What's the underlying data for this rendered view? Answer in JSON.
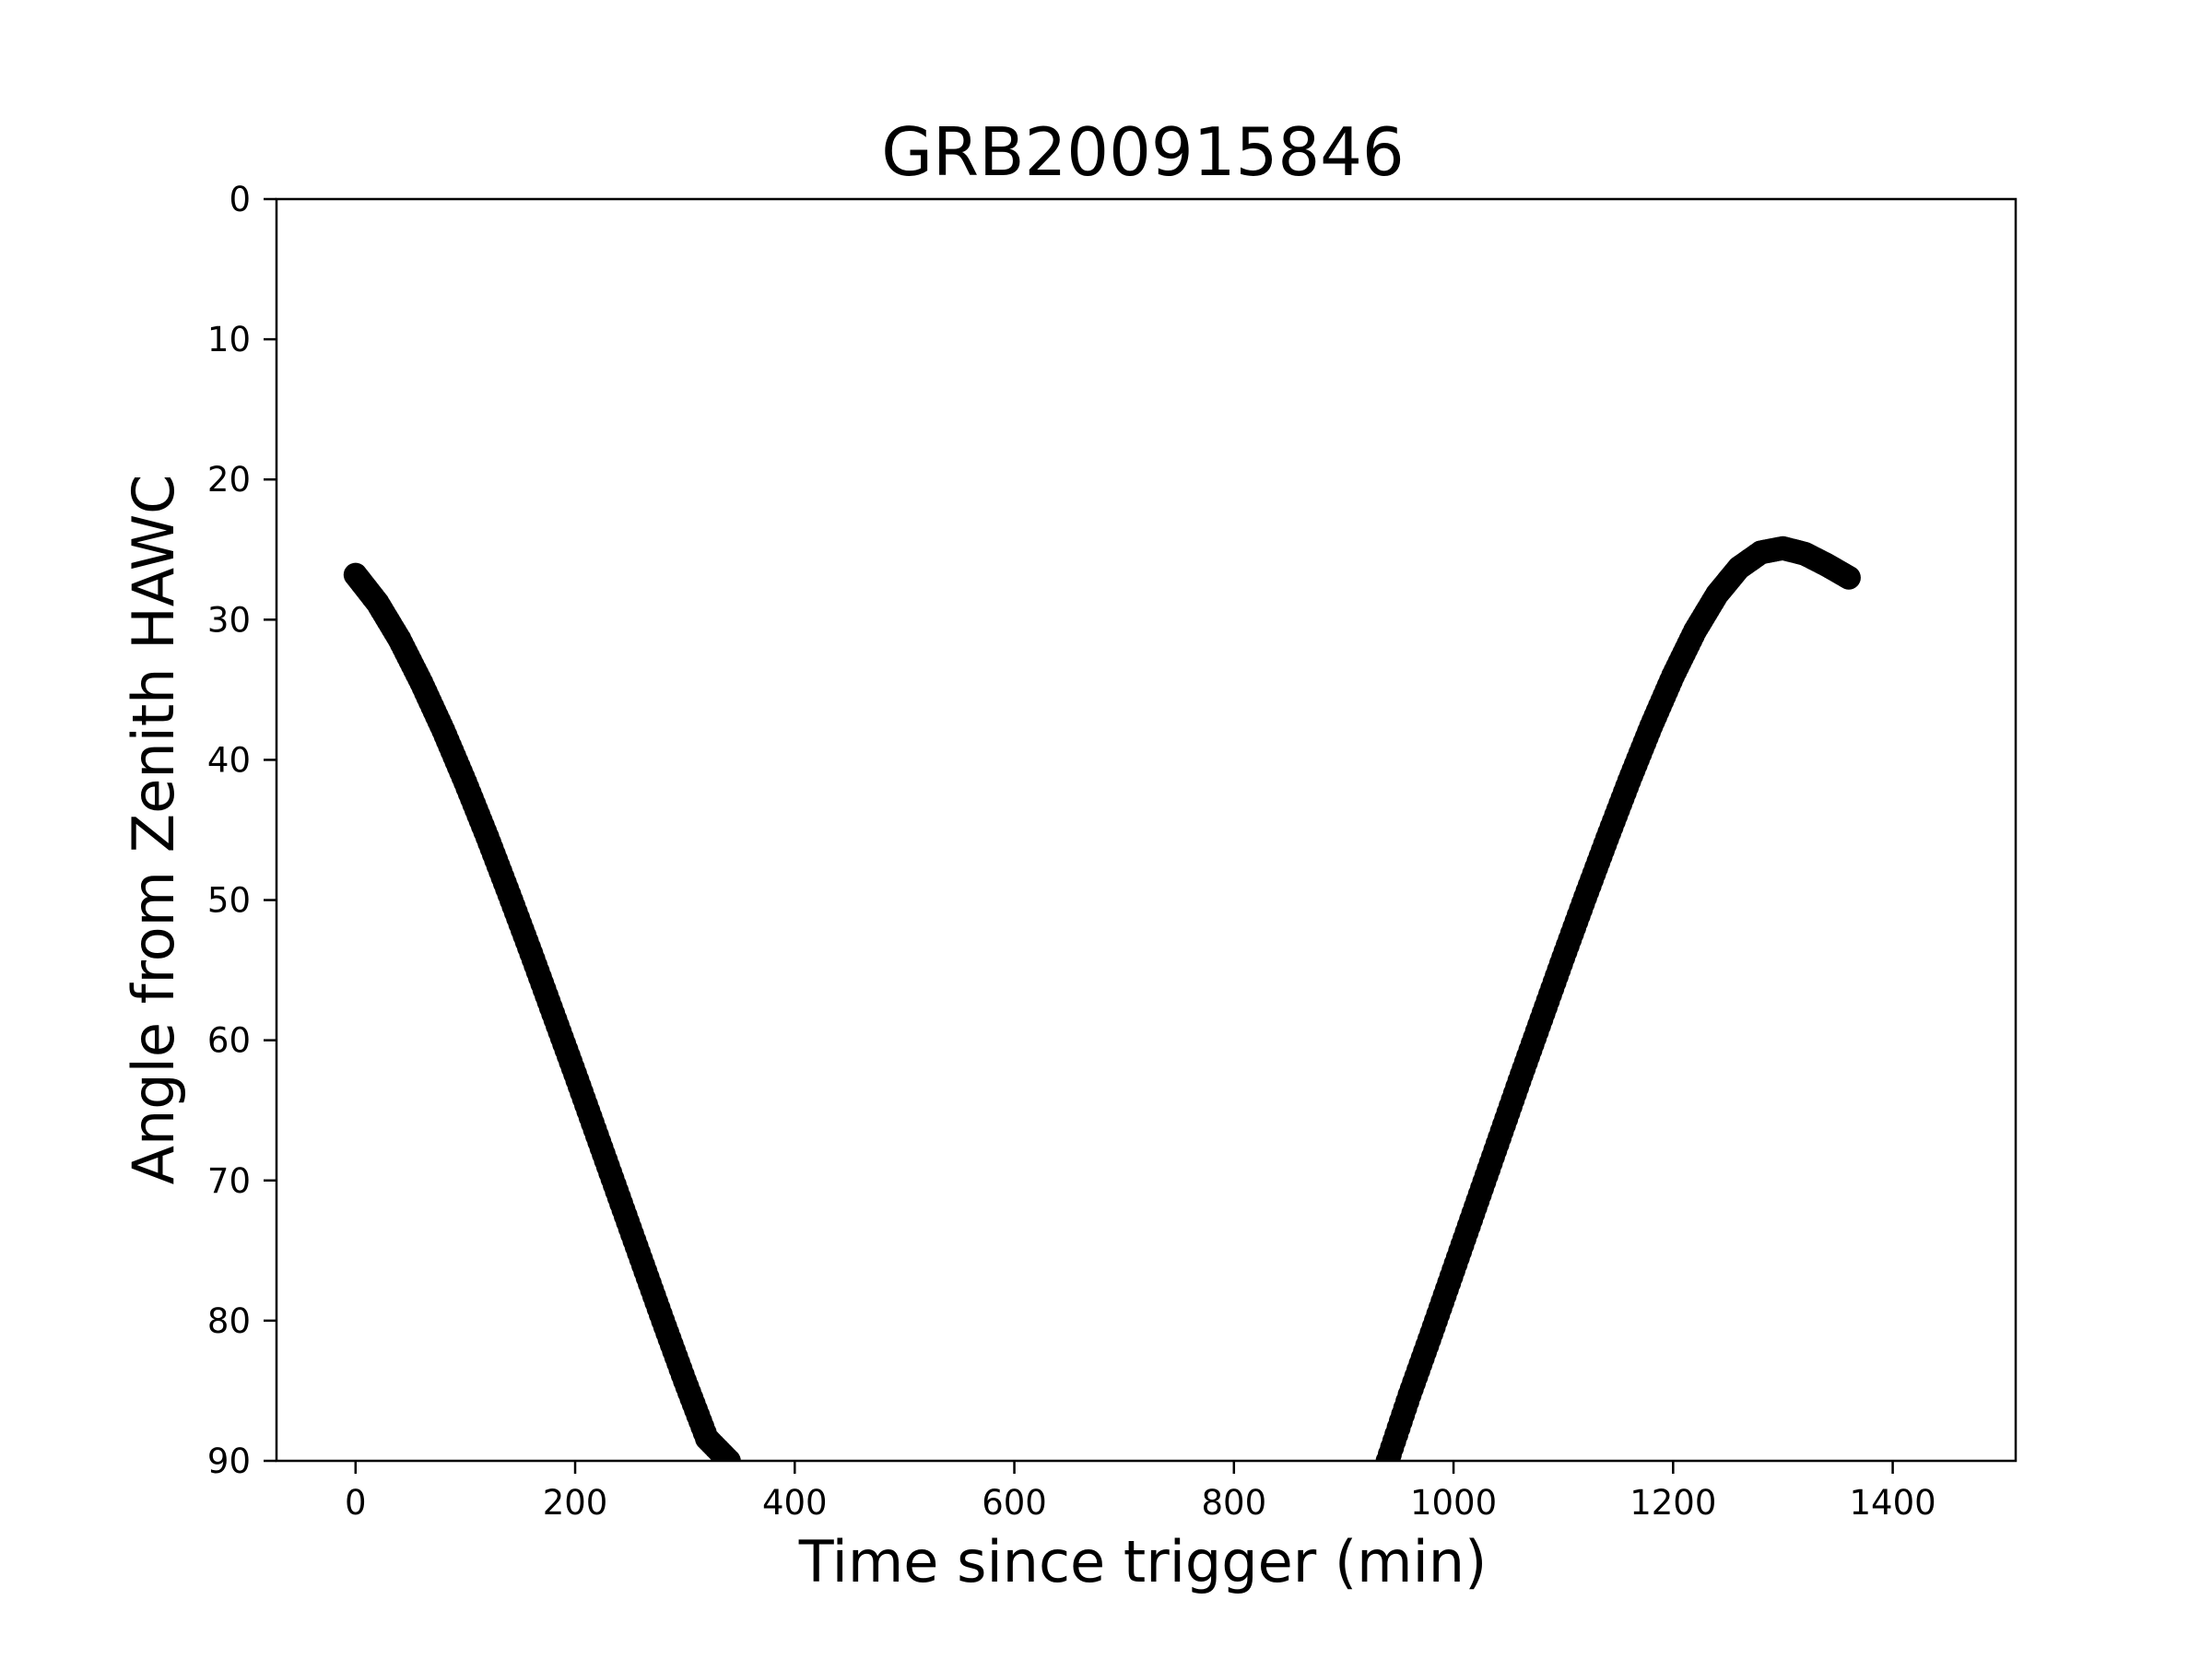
{
  "chart_data": {
    "type": "scatter",
    "title": "GRB200915846",
    "xlabel": "Time since trigger (min)",
    "ylabel": "Angle from Zenith HAWC",
    "xlim": [
      -72,
      1512
    ],
    "ylim": [
      0,
      90
    ],
    "y_inverted": true,
    "grid": false,
    "marker_color": "#000000",
    "xticks": [
      0,
      200,
      400,
      600,
      800,
      1000,
      1200,
      1400
    ],
    "yticks": [
      0,
      10,
      20,
      30,
      40,
      50,
      60,
      70,
      80,
      90
    ],
    "series": [
      {
        "points": [
          [
            0,
            26.8
          ],
          [
            20,
            28.8
          ],
          [
            40,
            31.4
          ],
          [
            60,
            34.5
          ],
          [
            80,
            37.9
          ],
          [
            100,
            41.6
          ],
          [
            120,
            45.5
          ],
          [
            140,
            49.6
          ],
          [
            160,
            53.8
          ],
          [
            180,
            58.1
          ],
          [
            200,
            62.4
          ],
          [
            220,
            66.8
          ],
          [
            240,
            71.2
          ],
          [
            260,
            75.6
          ],
          [
            280,
            80.0
          ],
          [
            300,
            84.3
          ],
          [
            320,
            88.4
          ],
          [
            340,
            90.0
          ]
        ]
      },
      {
        "points": [
          [
            940,
            90.0
          ],
          [
            960,
            85.3
          ],
          [
            980,
            80.9
          ],
          [
            1000,
            76.4
          ],
          [
            1020,
            71.9
          ],
          [
            1040,
            67.4
          ],
          [
            1060,
            62.9
          ],
          [
            1080,
            58.5
          ],
          [
            1100,
            54.1
          ],
          [
            1120,
            49.8
          ],
          [
            1140,
            45.6
          ],
          [
            1160,
            41.5
          ],
          [
            1180,
            37.6
          ],
          [
            1200,
            34.0
          ],
          [
            1220,
            30.8
          ],
          [
            1240,
            28.2
          ],
          [
            1260,
            26.3
          ],
          [
            1280,
            25.2
          ],
          [
            1300,
            24.9
          ],
          [
            1320,
            25.3
          ],
          [
            1340,
            26.1
          ],
          [
            1360,
            27.0
          ]
        ]
      }
    ]
  }
}
